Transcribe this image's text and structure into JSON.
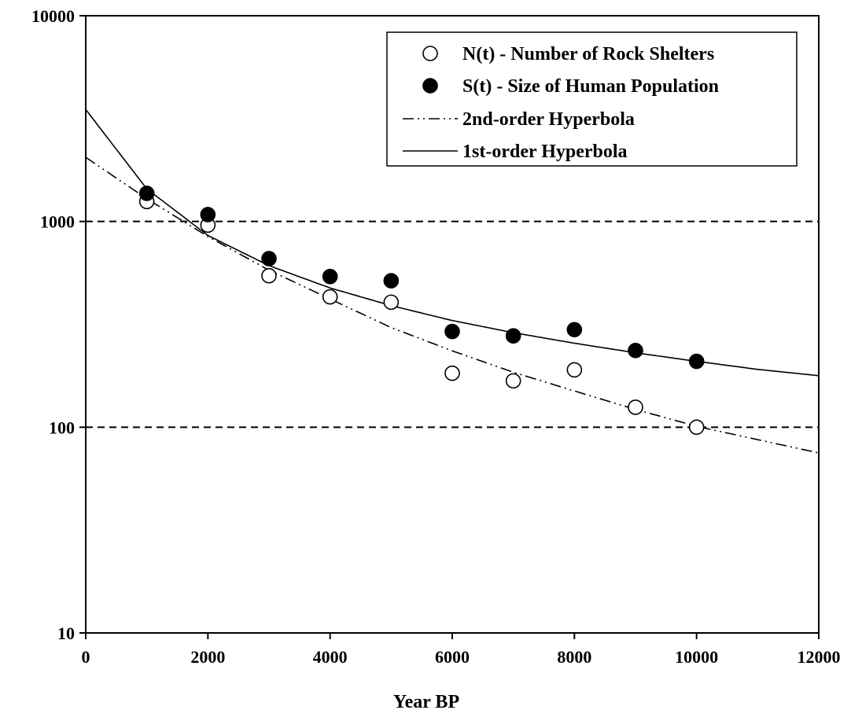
{
  "chart_data": {
    "type": "scatter",
    "title": "",
    "xlabel": "Year BP",
    "ylabel": "",
    "xlim": [
      0,
      12000
    ],
    "ylim": [
      10,
      10000
    ],
    "yscale": "log",
    "x_ticks": [
      "0",
      "2000",
      "4000",
      "6000",
      "8000",
      "10000",
      "12000"
    ],
    "y_ticks": [
      "10",
      "100",
      "1000",
      "10000"
    ],
    "grid": "dashed horizontal lines at 100 and 1000",
    "legend_position": "top-right",
    "series": [
      {
        "name": "N(t) - Number of Rock Shelters",
        "marker": "open-circle",
        "x": [
          1000,
          2000,
          3000,
          4000,
          5000,
          6000,
          7000,
          8000,
          9000,
          10000
        ],
        "y": [
          1250,
          960,
          545,
          430,
          405,
          183,
          168,
          190,
          125,
          100
        ]
      },
      {
        "name": "S(t) - Size of Human Population",
        "marker": "filled-circle",
        "x": [
          1000,
          2000,
          3000,
          4000,
          5000,
          6000,
          7000,
          8000,
          9000,
          10000
        ],
        "y": [
          1370,
          1080,
          660,
          540,
          515,
          292,
          278,
          298,
          236,
          209
        ]
      },
      {
        "name": "2nd-order Hyperbola",
        "style": "dash-dot-dot",
        "x": [
          0,
          1000,
          2000,
          3000,
          4000,
          5000,
          6000,
          7000,
          8000,
          9000,
          10000,
          11000,
          12000
        ],
        "y": [
          2050,
          1290,
          845,
          580,
          420,
          305,
          235,
          185,
          150,
          122,
          101,
          87,
          75
        ]
      },
      {
        "name": "1st-order Hyperbola",
        "style": "solid",
        "x": [
          0,
          1000,
          2000,
          3000,
          4000,
          5000,
          6000,
          7000,
          8000,
          9000,
          10000,
          11000,
          12000
        ],
        "y": [
          3500,
          1440,
          855,
          610,
          475,
          390,
          330,
          288,
          256,
          230,
          209,
          191,
          178
        ]
      }
    ],
    "colors": {
      "axis": "#000000",
      "marker_fill": "#000000",
      "open_fill": "#ffffff"
    }
  }
}
